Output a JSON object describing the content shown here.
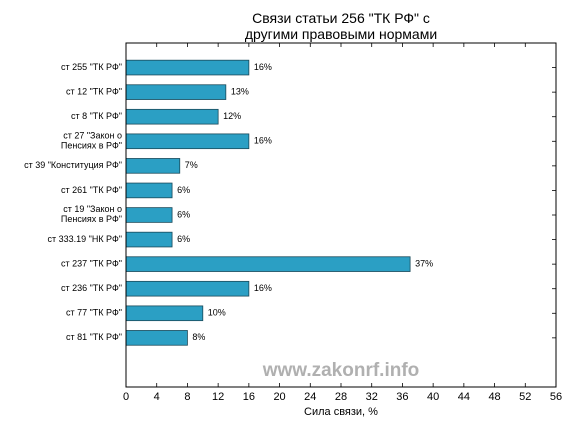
{
  "chart_data": {
    "type": "barh",
    "title": "Связи статьи 256 \"ТК РФ\" с\nдругими правовыми нормами",
    "xlabel": "Сила связи, %",
    "watermark": "www.zakonrf.info",
    "categories": [
      "ст 255 \"ТК РФ\"",
      "ст 12 \"ТК РФ\"",
      "ст 8 \"ТК РФ\"",
      "ст 27 \"Закон о\nПенсиях в РФ\"",
      "ст 39 \"Конституция РФ\"",
      "ст 261 \"ТК РФ\"",
      "ст 19 \"Закон о\nПенсиях в РФ\"",
      "ст 333.19 \"НК РФ\"",
      "ст 237 \"ТК РФ\"",
      "ст 236 \"ТК РФ\"",
      "ст 77 \"ТК РФ\"",
      "ст 81 \"ТК РФ\""
    ],
    "values": [
      16,
      13,
      12,
      16,
      7,
      6,
      6,
      6,
      37,
      16,
      10,
      8
    ],
    "value_labels": [
      "16%",
      "13%",
      "12%",
      "16%",
      "7%",
      "6%",
      "6%",
      "6%",
      "37%",
      "16%",
      "10%",
      "8%"
    ],
    "color": "#2b9fc4",
    "xlim": [
      0,
      56
    ],
    "xticks": [
      0,
      4,
      8,
      12,
      16,
      20,
      24,
      28,
      32,
      36,
      40,
      44,
      48,
      52,
      56
    ]
  }
}
